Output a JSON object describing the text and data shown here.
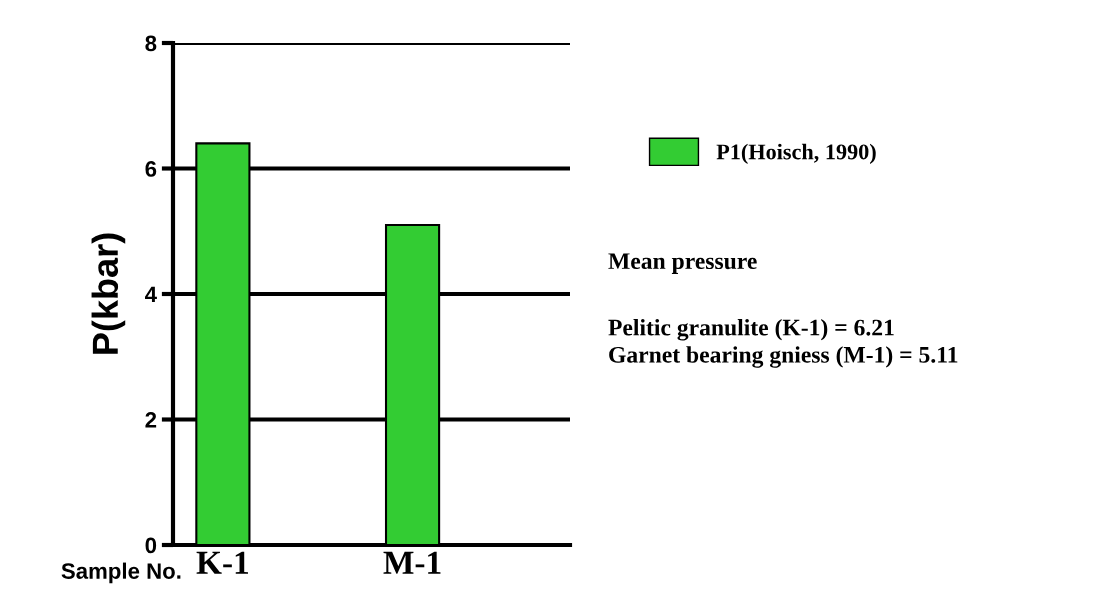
{
  "chart_data": {
    "type": "bar",
    "categories": [
      "K-1",
      "M-1"
    ],
    "xlabel": "Sample No.",
    "ylabel": "P(kbar)",
    "series": [
      {
        "name": "P1(Hoisch, 1990)",
        "color": "#33cc33",
        "values": [
          6.4,
          5.1
        ]
      }
    ],
    "ylim": [
      0,
      8
    ],
    "yticks": [
      0,
      2,
      4,
      6,
      8
    ],
    "grid": "y",
    "legend": "right",
    "annotations": [
      "Mean pressure",
      "Pelitic granulite (K-1) = 6.21",
      "Garnet bearing gniess (M-1) = 5.11"
    ]
  }
}
